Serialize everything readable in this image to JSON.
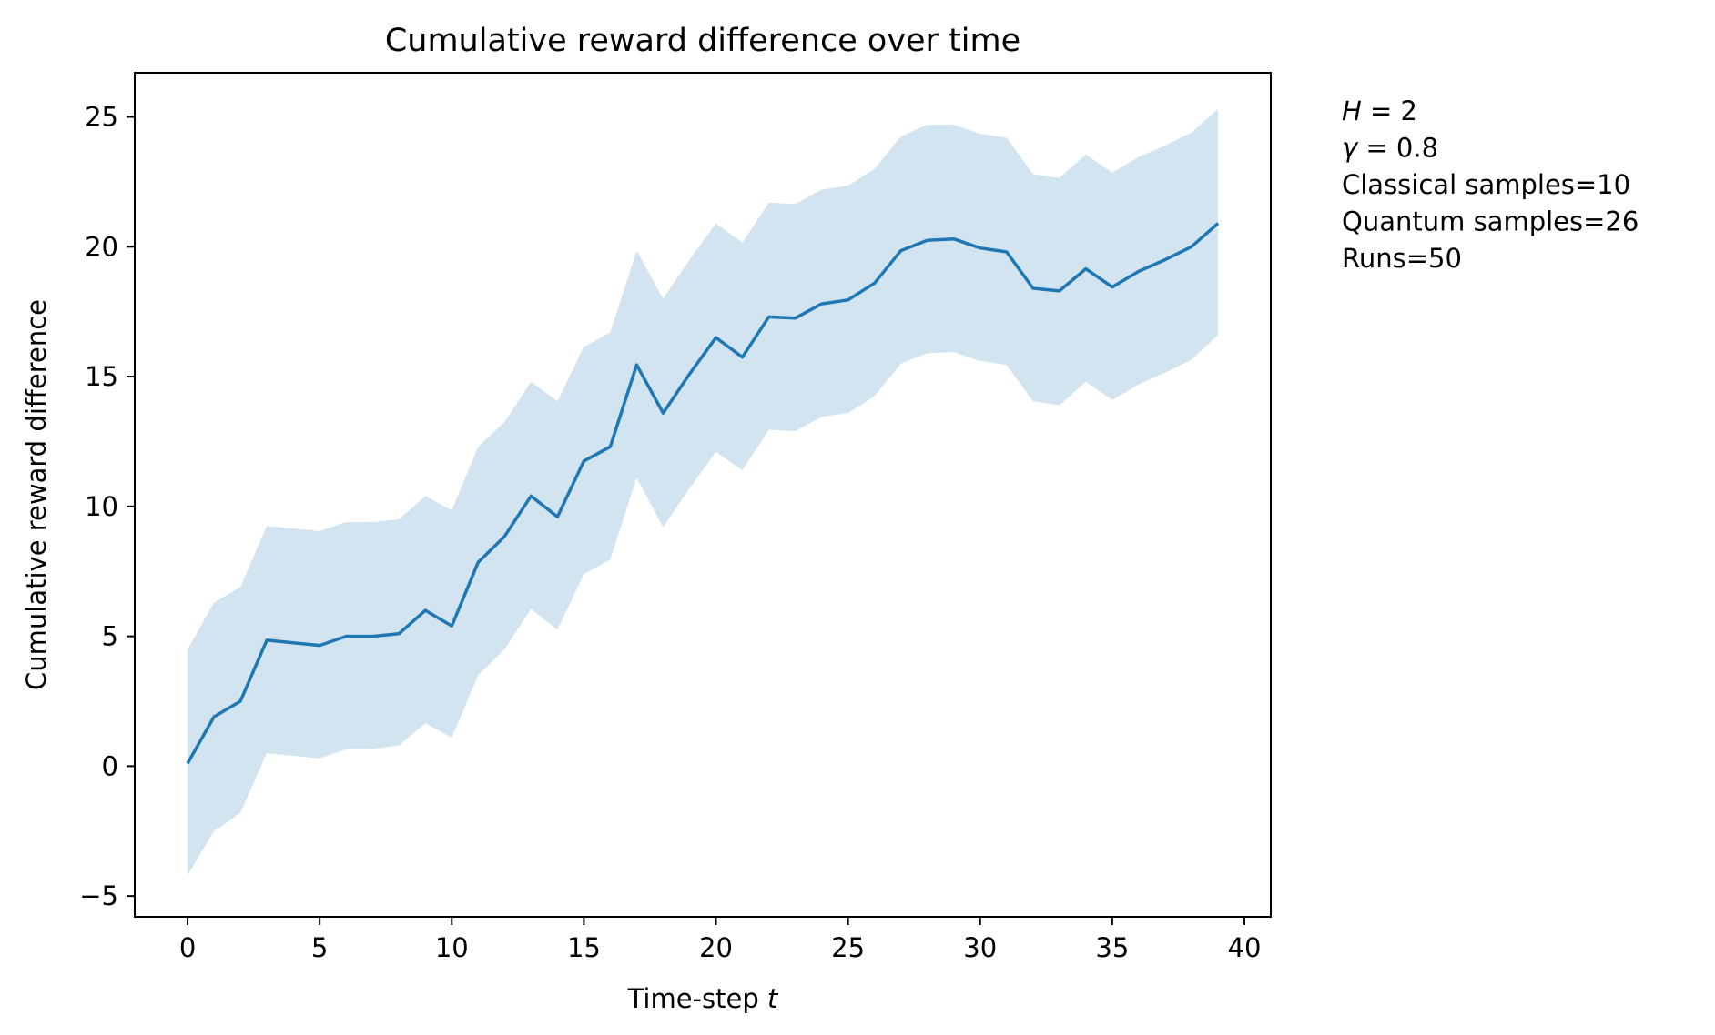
{
  "chart_data": {
    "type": "line",
    "title": "Cumulative reward difference over time",
    "xlabel_prefix": "Time-step ",
    "xlabel_var": "t",
    "ylabel": "Cumulative reward difference",
    "xlim": [
      -2,
      41
    ],
    "ylim": [
      -5.8,
      26.7
    ],
    "xticks": [
      0,
      5,
      10,
      15,
      20,
      25,
      30,
      35,
      40
    ],
    "yticks": [
      -5,
      0,
      5,
      10,
      15,
      20,
      25
    ],
    "xtick_labels": [
      "0",
      "5",
      "10",
      "15",
      "20",
      "25",
      "30",
      "35",
      "40"
    ],
    "ytick_labels": [
      "−5",
      "0",
      "5",
      "10",
      "15",
      "20",
      "25"
    ],
    "grid": false,
    "legend": "none",
    "line_color": "#1f77b4",
    "band_color": "#1f77b4",
    "band_opacity": 0.2,
    "x": [
      0,
      1,
      2,
      3,
      4,
      5,
      6,
      7,
      8,
      9,
      10,
      11,
      12,
      13,
      14,
      15,
      16,
      17,
      18,
      19,
      20,
      21,
      22,
      23,
      24,
      25,
      26,
      27,
      28,
      29,
      30,
      31,
      32,
      33,
      34,
      35,
      36,
      37,
      38,
      39
    ],
    "mean": [
      0.1,
      1.9,
      2.5,
      4.85,
      4.75,
      4.65,
      5.0,
      5.0,
      5.1,
      6.0,
      5.4,
      7.85,
      8.85,
      10.4,
      9.6,
      11.75,
      12.3,
      15.45,
      13.6,
      15.1,
      16.5,
      15.75,
      17.3,
      17.25,
      17.8,
      17.95,
      18.6,
      19.85,
      20.25,
      20.3,
      19.95,
      19.8,
      18.4,
      18.3,
      19.15,
      18.45,
      19.05,
      19.5,
      20.0,
      20.9
    ],
    "lower": [
      -4.2,
      -2.5,
      -1.8,
      0.5,
      0.4,
      0.3,
      0.65,
      0.65,
      0.8,
      1.65,
      1.1,
      3.5,
      4.5,
      6.05,
      5.25,
      7.4,
      7.95,
      11.1,
      9.2,
      10.7,
      12.1,
      11.4,
      12.95,
      12.9,
      13.45,
      13.6,
      14.25,
      15.5,
      15.9,
      15.95,
      15.6,
      15.45,
      14.05,
      13.9,
      14.8,
      14.1,
      14.7,
      15.15,
      15.65,
      16.6
    ],
    "upper": [
      4.5,
      6.3,
      6.9,
      9.25,
      9.15,
      9.05,
      9.4,
      9.4,
      9.5,
      10.4,
      9.85,
      12.3,
      13.25,
      14.8,
      14.05,
      16.15,
      16.7,
      19.85,
      18.0,
      19.5,
      20.9,
      20.15,
      21.7,
      21.65,
      22.2,
      22.35,
      23.0,
      24.25,
      24.7,
      24.7,
      24.35,
      24.2,
      22.8,
      22.65,
      23.55,
      22.85,
      23.45,
      23.9,
      24.4,
      25.3
    ],
    "annotations": [
      {
        "var": "H",
        "rest": " = 2"
      },
      {
        "var": "γ",
        "rest": " = 0.8"
      },
      {
        "var": "",
        "rest": "Classical samples=10"
      },
      {
        "var": "",
        "rest": "Quantum samples=26"
      },
      {
        "var": "",
        "rest": "Runs=50"
      }
    ]
  }
}
